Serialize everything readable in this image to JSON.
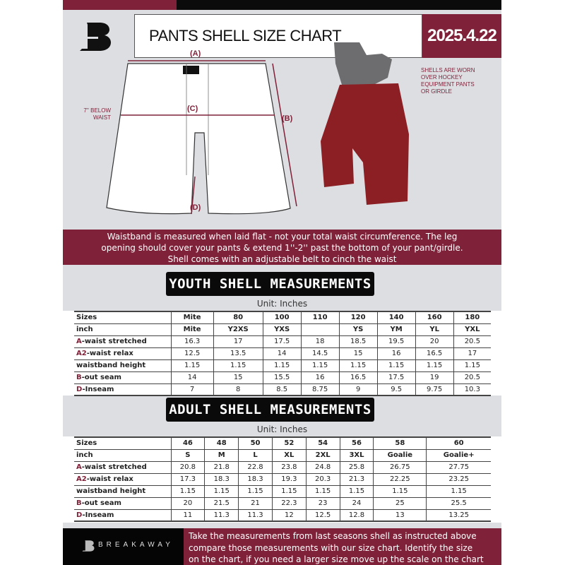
{
  "header": {
    "title": "PANTS SHELL SIZE CHART",
    "date": "2025.4.22",
    "logo_text": "B"
  },
  "diagram": {
    "label_a": "(A)",
    "label_b": "(B)",
    "label_c": "(C)",
    "label_d": "(D)",
    "below_waist": [
      "7'' BELOW",
      "WAIST"
    ],
    "shell_note": [
      "SHELLS ARE WORN",
      "OVER HOCKEY",
      "EQUIPMENT PANTS",
      "OR GIRDLE"
    ]
  },
  "banner": [
    "Waistband is measured when laid flat - not your total waist circumference. The leg",
    "opening should cover your pants & extend 1''-2'' past the bottom of your pant/girdle.",
    "Shell comes with an adjustable belt to cinch the waist"
  ],
  "youth": {
    "title": "YOUTH SHELL MEASUREMENTS",
    "unit": "Unit: Inches",
    "rows": [
      {
        "prefix": "",
        "label": "Sizes",
        "values": [
          "Mite",
          "80",
          "100",
          "110",
          "120",
          "140",
          "160",
          "180"
        ]
      },
      {
        "prefix": "",
        "label": "inch",
        "values": [
          "Mite",
          "Y2XS",
          "YXS",
          "",
          "YS",
          "YM",
          "YL",
          "YXL"
        ]
      },
      {
        "prefix": "A",
        "label": "-waist stretched",
        "values": [
          "16.3",
          "17",
          "17.5",
          "18",
          "18.5",
          "19.5",
          "20",
          "20.5"
        ]
      },
      {
        "prefix": "A2",
        "label": "-waist relax",
        "values": [
          "12.5",
          "13.5",
          "14",
          "14.5",
          "15",
          "16",
          "16.5",
          "17"
        ]
      },
      {
        "prefix": "",
        "label": "waistband height",
        "values": [
          "1.15",
          "1.15",
          "1.15",
          "1.15",
          "1.15",
          "1.15",
          "1.15",
          "1.15"
        ]
      },
      {
        "prefix": "B",
        "label": "-out seam",
        "values": [
          "14",
          "15",
          "15.5",
          "16",
          "16.5",
          "17.5",
          "19",
          "20.5"
        ]
      },
      {
        "prefix": "D",
        "label": "-Inseam",
        "values": [
          "7",
          "8",
          "8.5",
          "8.75",
          "9",
          "9.5",
          "9.75",
          "10.3"
        ]
      }
    ]
  },
  "adult": {
    "title": "ADULT SHELL MEASUREMENTS",
    "unit": "Unit: Inches",
    "rows": [
      {
        "prefix": "",
        "label": "Sizes",
        "values": [
          "46",
          "48",
          "50",
          "52",
          "54",
          "56",
          "58",
          "60"
        ]
      },
      {
        "prefix": "",
        "label": "inch",
        "values": [
          "S",
          "M",
          "L",
          "XL",
          "2XL",
          "3XL",
          "Goalie",
          "Goalie+"
        ]
      },
      {
        "prefix": "A",
        "label": "-waist stretched",
        "values": [
          "20.8",
          "21.8",
          "22.8",
          "23.8",
          "24.8",
          "25.8",
          "26.75",
          "27.75"
        ]
      },
      {
        "prefix": "A2",
        "label": "-waist relax",
        "values": [
          "17.3",
          "18.3",
          "18.3",
          "19.3",
          "20.3",
          "21.3",
          "22.25",
          "23.25"
        ]
      },
      {
        "prefix": "",
        "label": "waistband height",
        "values": [
          "1.15",
          "1.15",
          "1.15",
          "1.15",
          "1.15",
          "1.15",
          "1.15",
          "1.15"
        ]
      },
      {
        "prefix": "B",
        "label": "-out seam",
        "values": [
          "20",
          "21.5",
          "21",
          "22.3",
          "23",
          "24",
          "25",
          "25.5"
        ]
      },
      {
        "prefix": "D",
        "label": "-Inseam",
        "values": [
          "11",
          "11.3",
          "11.3",
          "12",
          "12.5",
          "12.8",
          "13",
          "13.25"
        ]
      }
    ]
  },
  "footer": {
    "brand": "BREAKAWAY",
    "text": [
      "Take the measurements from last seasons shell as instructed above",
      "compare those measurements  with our size chart. Identify the size",
      "on the chart, if you need a larger size move up the scale on the chart"
    ]
  },
  "colors": {
    "maroon": "#7f2239",
    "black": "#0b0b0b",
    "background": "#dddee2"
  }
}
